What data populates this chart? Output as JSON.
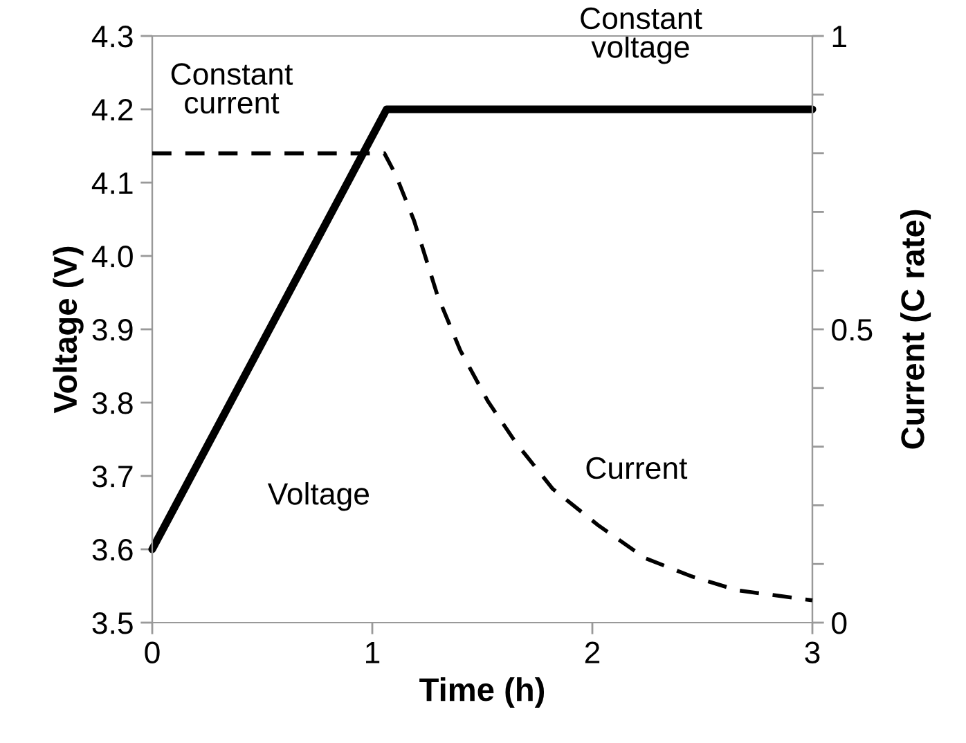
{
  "chart_data": {
    "type": "line",
    "xlabel": "Time (h)",
    "ylabel": "Voltage (V)",
    "y2label": "Current (C rate)",
    "xlim": [
      0,
      3
    ],
    "xticks": [
      0,
      1,
      2,
      3
    ],
    "ylim": [
      3.5,
      4.3
    ],
    "yticks": [
      3.5,
      3.6,
      3.7,
      3.8,
      3.9,
      {
        "value": 4.0,
        "label": "4.0"
      },
      4.1,
      4.2,
      4.3
    ],
    "y2lim": [
      0,
      1
    ],
    "y2ticks": [
      0,
      {
        "value": 0.1,
        "label": null
      },
      {
        "value": 0.2,
        "label": null
      },
      {
        "value": 0.3,
        "label": null
      },
      {
        "value": 0.4,
        "label": null
      },
      0.5,
      {
        "value": 0.6,
        "label": null
      },
      {
        "value": 0.7,
        "label": null
      },
      {
        "value": 0.8,
        "label": null
      },
      {
        "value": 0.9,
        "label": null
      },
      1
    ],
    "grid": false,
    "legend": false,
    "marker": "none",
    "annotations": [
      "Constant\ncurrent",
      "Constant\nvoltage"
    ],
    "series": [
      {
        "name": "Voltage",
        "color": "#000000",
        "line_style": "solid",
        "x": [
          0,
          1.065,
          3
        ],
        "values": [
          3.6,
          4.2,
          4.2
        ]
      },
      {
        "name": "Current",
        "color": "#000000",
        "line_style": "dashed",
        "axis": "y2",
        "x": [
          0,
          1.055,
          1.107,
          1.19,
          1.296,
          1.4,
          1.526,
          1.652,
          1.82,
          2.03,
          2.24,
          2.45,
          2.66,
          3
        ],
        "values": [
          0.8,
          0.8,
          0.763,
          0.685,
          0.558,
          0.464,
          0.377,
          0.307,
          0.228,
          0.165,
          0.11,
          0.079,
          0.055,
          0.038
        ]
      }
    ]
  }
}
